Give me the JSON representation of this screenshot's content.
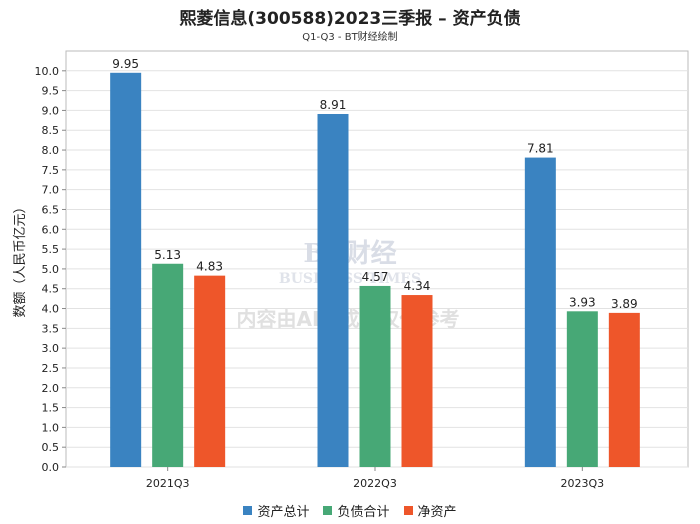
{
  "chart_data": {
    "type": "bar",
    "title": "熙菱信息(300588)2023三季报 – 资产负债",
    "subtitle": "Q1-Q3 - BT财经绘制",
    "ylabel": "数额（人民币亿元）",
    "xlabel": "",
    "ylim": [
      0,
      10.5
    ],
    "yticks": [
      "0.0",
      "0.5",
      "1.0",
      "1.5",
      "2.0",
      "2.5",
      "3.0",
      "3.5",
      "4.0",
      "4.5",
      "5.0",
      "5.5",
      "6.0",
      "6.5",
      "7.0",
      "7.5",
      "8.0",
      "8.5",
      "9.0",
      "9.5",
      "10.0"
    ],
    "categories": [
      "2021Q3",
      "2022Q3",
      "2023Q3"
    ],
    "series": [
      {
        "name": "资产总计",
        "color": "#3a83c1",
        "values": [
          9.95,
          8.91,
          7.81
        ]
      },
      {
        "name": "负债合计",
        "color": "#47a876",
        "values": [
          5.13,
          4.57,
          3.93
        ]
      },
      {
        "name": "净资产",
        "color": "#ee562a",
        "values": [
          4.83,
          4.34,
          3.89
        ]
      }
    ],
    "grid": true,
    "legend": "bottom-center",
    "watermark": {
      "logo_text": "BT财经",
      "logo_sub": "BUSINESS TIMES",
      "notice": "内容由AI生成，仅供参考"
    }
  }
}
